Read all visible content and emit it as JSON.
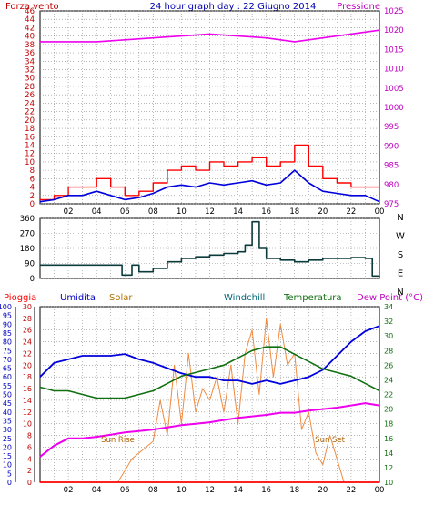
{
  "title": "24 hour graph day : 22 Giugno 2014",
  "colors": {
    "wind": "#ff0000",
    "wind_avg": "#0000dd",
    "pressure": "#ee00ee",
    "direction": "#0b3b3b",
    "rain": "#ff0000",
    "humidity": "#0000dd",
    "solar": "#f08a40",
    "windchill": "#006677",
    "temperature": "#107010",
    "dewpoint": "#ee00ee",
    "grid": "#8a8a8a",
    "frame": "#000000",
    "bg": "#ffffff"
  },
  "x_ticks": [
    "02",
    "04",
    "06",
    "08",
    "10",
    "12",
    "14",
    "16",
    "18",
    "20",
    "22",
    "00"
  ],
  "chart_data": [
    {
      "type": "line",
      "name": "wind_pressure",
      "left_label": "Forza vento",
      "right_label": "Pressione",
      "x_range": [
        0,
        24
      ],
      "left_axis": {
        "ticks": [
          "0",
          "2",
          "4",
          "6",
          "8",
          "10",
          "12",
          "14",
          "16",
          "18",
          "20",
          "22",
          "24",
          "26",
          "28",
          "30",
          "32",
          "34",
          "36",
          "38",
          "40",
          "42",
          "44",
          "46"
        ],
        "range": [
          0,
          46
        ]
      },
      "right_axis": {
        "ticks": [
          "975",
          "980",
          "985",
          "990",
          "995",
          "1000",
          "1005",
          "1010",
          "1015",
          "1020",
          "1025"
        ],
        "range": [
          975,
          1025
        ]
      },
      "series": [
        {
          "id": "wind_gust",
          "axis": "left",
          "x": [
            0,
            1,
            2,
            3,
            4,
            5,
            6,
            7,
            8,
            9,
            10,
            11,
            12,
            13,
            14,
            15,
            16,
            17,
            18,
            19,
            20,
            21,
            22,
            23,
            24
          ],
          "y": [
            1,
            2,
            4,
            4,
            6,
            4,
            2,
            3,
            5,
            8,
            9,
            8,
            10,
            9,
            10,
            11,
            9,
            10,
            14,
            9,
            6,
            5,
            4,
            4,
            1
          ]
        },
        {
          "id": "wind_avg",
          "axis": "left",
          "x": [
            0,
            1,
            2,
            3,
            4,
            5,
            6,
            7,
            8,
            9,
            10,
            11,
            12,
            13,
            14,
            15,
            16,
            17,
            18,
            19,
            20,
            21,
            22,
            23,
            24
          ],
          "y": [
            0.5,
            1,
            2,
            2,
            3,
            2,
            1,
            1.5,
            2.5,
            4,
            4.5,
            4,
            5,
            4.5,
            5,
            5.5,
            4.5,
            5,
            8,
            5,
            3,
            2.5,
            2,
            2,
            0.5
          ]
        },
        {
          "id": "pressure",
          "axis": "right",
          "x": [
            0,
            2,
            4,
            6,
            8,
            10,
            12,
            14,
            16,
            18,
            20,
            22,
            24
          ],
          "y": [
            1017,
            1017,
            1017,
            1017.5,
            1018,
            1018.5,
            1019,
            1018.5,
            1018,
            1017,
            1018,
            1019,
            1020
          ]
        }
      ]
    },
    {
      "type": "line",
      "name": "wind_direction",
      "left_axis": {
        "ticks": [
          "360",
          "270",
          "180",
          "90",
          "0"
        ],
        "range": [
          0,
          360
        ]
      },
      "right_axis": {
        "ticks": [
          "N",
          "W",
          "S",
          "E",
          "N"
        ]
      },
      "series": [
        {
          "id": "direction",
          "x": [
            0,
            1,
            2,
            3,
            4,
            5,
            5.8,
            6,
            6.5,
            7,
            8,
            9,
            10,
            11,
            12,
            13,
            14,
            14.5,
            15,
            15.5,
            16,
            17,
            18,
            19,
            20,
            21,
            22,
            23,
            23.5,
            24
          ],
          "y": [
            80,
            80,
            80,
            80,
            80,
            80,
            20,
            20,
            80,
            40,
            60,
            100,
            120,
            130,
            140,
            150,
            160,
            200,
            340,
            180,
            120,
            110,
            100,
            110,
            120,
            120,
            125,
            120,
            15,
            10
          ]
        }
      ]
    },
    {
      "type": "line",
      "name": "rain_humidity_solar_temperature",
      "labels": {
        "rain": "Pioggia",
        "humidity": "Umidita",
        "solar": "Solar",
        "windchill": "Windchill",
        "temperature": "Temperatura",
        "dewpoint": "Dew Point (°C)"
      },
      "annotations": [
        {
          "text": "Sun Rise",
          "x": 5.5,
          "y_temp": 15.5
        },
        {
          "text": "Sun Set",
          "x": 20.5,
          "y_temp": 15.5
        }
      ],
      "left_axis_humidity": {
        "ticks": [
          "0",
          "5",
          "10",
          "15",
          "20",
          "25",
          "30",
          "35",
          "40",
          "45",
          "50",
          "55",
          "60",
          "65",
          "70",
          "75",
          "80",
          "85",
          "90",
          "95",
          "100"
        ],
        "range": [
          0,
          100
        ]
      },
      "left_axis_rain": {
        "ticks": [
          "0",
          "2",
          "4",
          "6",
          "8",
          "10",
          "12",
          "14",
          "16",
          "18",
          "20",
          "22",
          "24",
          "26",
          "28",
          "30"
        ],
        "range": [
          0,
          30
        ]
      },
      "right_axis_temp": {
        "ticks": [
          "10",
          "12",
          "14",
          "16",
          "18",
          "20",
          "22",
          "24",
          "26",
          "28",
          "30",
          "32",
          "34"
        ],
        "range": [
          10,
          34
        ]
      },
      "series": [
        {
          "id": "rain",
          "axis": "rain",
          "x": [
            0,
            24
          ],
          "y": [
            0,
            0
          ]
        },
        {
          "id": "humidity",
          "axis": "humidity",
          "x": [
            0,
            1,
            2,
            3,
            4,
            5,
            6,
            7,
            8,
            9,
            10,
            11,
            12,
            13,
            14,
            15,
            16,
            17,
            18,
            19,
            20,
            21,
            22,
            23,
            24
          ],
          "y": [
            60,
            68,
            70,
            72,
            72,
            72,
            73,
            70,
            68,
            65,
            62,
            60,
            60,
            58,
            58,
            56,
            58,
            56,
            58,
            60,
            64,
            72,
            80,
            86,
            89
          ]
        },
        {
          "id": "temperature",
          "axis": "temp",
          "x": [
            0,
            1,
            2,
            3,
            4,
            5,
            6,
            7,
            8,
            9,
            10,
            11,
            12,
            13,
            14,
            15,
            16,
            17,
            18,
            19,
            20,
            21,
            22,
            23,
            24
          ],
          "y": [
            23,
            22.5,
            22.5,
            22,
            21.5,
            21.5,
            21.5,
            22,
            22.5,
            23.5,
            24.5,
            25,
            25.5,
            26,
            27,
            28,
            28.5,
            28.5,
            27.5,
            26.5,
            25.5,
            25,
            24.5,
            23.5,
            22.5
          ]
        },
        {
          "id": "dewpoint",
          "axis": "temp",
          "x": [
            0,
            1,
            2,
            3,
            4,
            5,
            6,
            7,
            8,
            9,
            10,
            11,
            12,
            13,
            14,
            15,
            16,
            17,
            18,
            19,
            20,
            21,
            22,
            23,
            24
          ],
          "y": [
            13.5,
            15,
            16,
            16,
            16.2,
            16.5,
            16.8,
            17,
            17.2,
            17.5,
            17.8,
            18,
            18.2,
            18.5,
            18.8,
            19,
            19.2,
            19.5,
            19.5,
            19.8,
            20,
            20.2,
            20.5,
            20.8,
            20.5
          ]
        },
        {
          "id": "solar",
          "axis": "rain",
          "x": [
            0,
            5.5,
            6,
            6.5,
            7,
            7.5,
            8,
            8.5,
            9,
            9.5,
            10,
            10.5,
            11,
            11.5,
            12,
            12.5,
            13,
            13.5,
            14,
            14.5,
            15,
            15.5,
            16,
            16.5,
            17,
            17.5,
            18,
            18.5,
            19,
            19.5,
            20,
            20.5,
            21,
            21.5,
            22,
            24
          ],
          "y": [
            0,
            0,
            2,
            4,
            5,
            6,
            7,
            14,
            8,
            20,
            10,
            22,
            12,
            16,
            14,
            18,
            12,
            20,
            10,
            22,
            26,
            15,
            28,
            18,
            27,
            20,
            22,
            9,
            12,
            5,
            3,
            8,
            4,
            0,
            0,
            0
          ]
        }
      ]
    }
  ]
}
